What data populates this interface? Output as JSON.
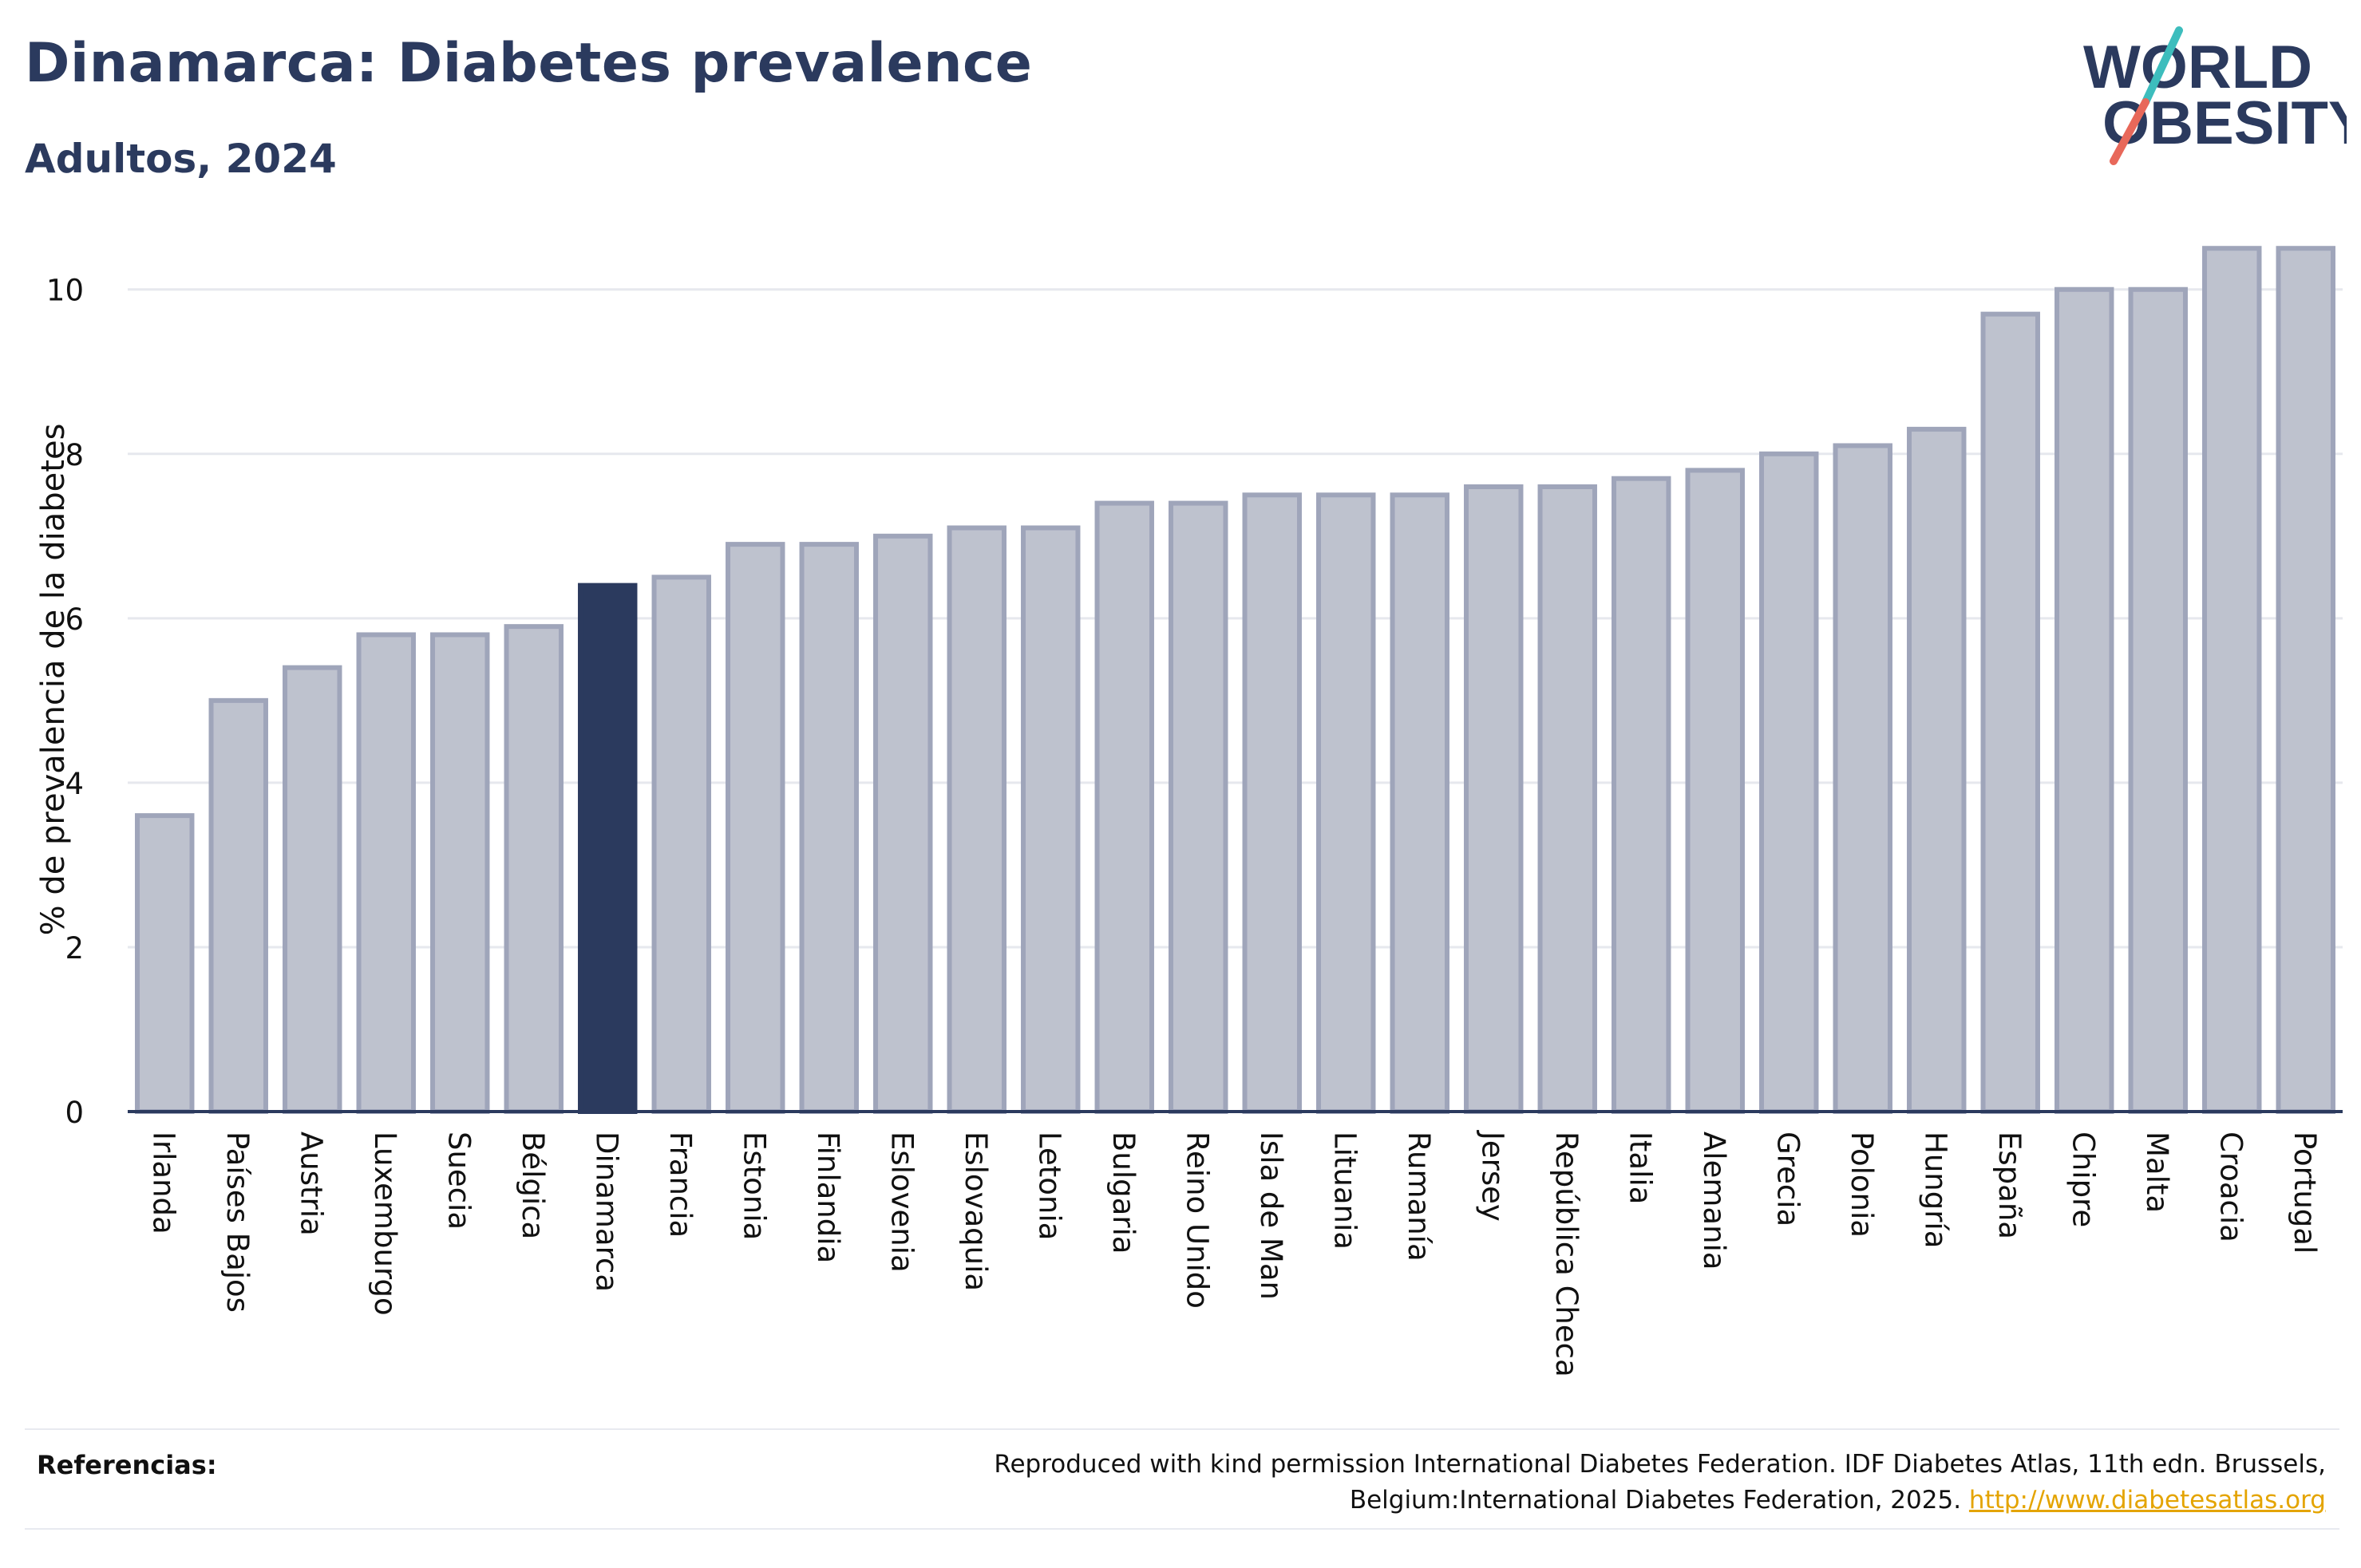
{
  "header": {
    "title": "Dinamarca: Diabetes prevalence",
    "subtitle": "Adultos, 2024"
  },
  "logo": {
    "line1": "WORLD",
    "line2": "OBESITY",
    "colors": {
      "text": "#2b3a5e",
      "slash_top": "#3dbdbd",
      "slash_bottom": "#e8685a"
    }
  },
  "chart_data": {
    "type": "bar",
    "title": "Dinamarca: Diabetes prevalence",
    "subtitle": "Adultos, 2024",
    "xlabel": "",
    "ylabel": "% de prevalencia de la diabetes",
    "ylim": [
      0,
      10.9
    ],
    "yticks": [
      0,
      2,
      4,
      6,
      8,
      10
    ],
    "grid": true,
    "highlight": "Dinamarca",
    "colors": {
      "bar": "#bec2ce",
      "bar_border": "#9fa5ba",
      "highlight": "#2b3a5e",
      "grid": "#e6e8ee",
      "axis": "#2b3a5e"
    },
    "categories": [
      "Irlanda",
      "Países Bajos",
      "Austria",
      "Luxemburgo",
      "Suecia",
      "Bélgica",
      "Dinamarca",
      "Francia",
      "Estonia",
      "Finlandia",
      "Eslovenia",
      "Eslovaquia",
      "Letonia",
      "Bulgaria",
      "Reino Unido",
      "Isla de Man",
      "Lituania",
      "Rumanía",
      "Jersey",
      "República Checa",
      "Italia",
      "Alemania",
      "Grecia",
      "Polonia",
      "Hungría",
      "España",
      "Chipre",
      "Malta",
      "Croacia",
      "Portugal"
    ],
    "values": [
      3.6,
      5.0,
      5.4,
      5.8,
      5.8,
      5.9,
      6.4,
      6.5,
      6.9,
      6.9,
      7.0,
      7.1,
      7.1,
      7.4,
      7.4,
      7.5,
      7.5,
      7.5,
      7.6,
      7.6,
      7.7,
      7.8,
      8.0,
      8.1,
      8.3,
      9.7,
      10.0,
      10.0,
      10.5,
      10.5
    ]
  },
  "footer": {
    "references_label": "Referencias:",
    "references_text": "Reproduced with kind permission International Diabetes Federation. IDF Diabetes Atlas, 11th edn. Brussels, Belgium:International Diabetes Federation, 2025.",
    "references_link": "http://www.diabetesatlas.org"
  }
}
